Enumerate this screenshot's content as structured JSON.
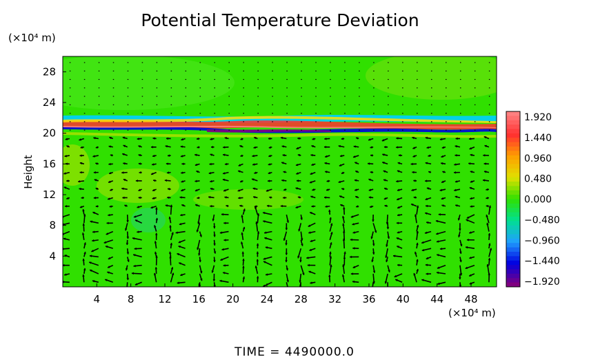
{
  "chart_data": {
    "type": "heatmap",
    "title": "Potential Temperature Deviation",
    "ylabel": "Height",
    "yunit": "(×10⁴ m)",
    "xunit": "(×10⁴ m)",
    "x_ticks": [
      "4",
      "8",
      "12",
      "16",
      "20",
      "24",
      "28",
      "32",
      "36",
      "40",
      "44",
      "48"
    ],
    "x_tick_values": [
      4,
      8,
      12,
      16,
      20,
      24,
      28,
      32,
      36,
      40,
      44,
      48
    ],
    "y_ticks": [
      "4",
      "8",
      "12",
      "16",
      "20",
      "24",
      "28"
    ],
    "y_tick_values": [
      4,
      8,
      12,
      16,
      20,
      24,
      28
    ],
    "xlim": [
      0,
      51
    ],
    "ylim": [
      0,
      30
    ],
    "colorbar": {
      "labels": [
        "1.920",
        "1.440",
        "0.960",
        "0.480",
        "0.000",
        "−0.480",
        "−0.960",
        "−1.440",
        "−1.920"
      ],
      "values": [
        1.92,
        1.44,
        0.96,
        0.48,
        0.0,
        -0.48,
        -0.96,
        -1.44,
        -1.92
      ],
      "colors": [
        "#ff8080",
        "#ff3030",
        "#ffa000",
        "#e0e000",
        "#30e000",
        "#00e090",
        "#20a0ff",
        "#0000e0",
        "#800080"
      ]
    },
    "field_description_values": {
      "background": 0.1,
      "band_center_height": 20.5,
      "band_max": 1.92,
      "band_min": -1.92
    },
    "vectors": "wind field arrows (u,w) shown over the domain"
  },
  "footer": {
    "time_text": "TIME  =  4490000.0"
  }
}
